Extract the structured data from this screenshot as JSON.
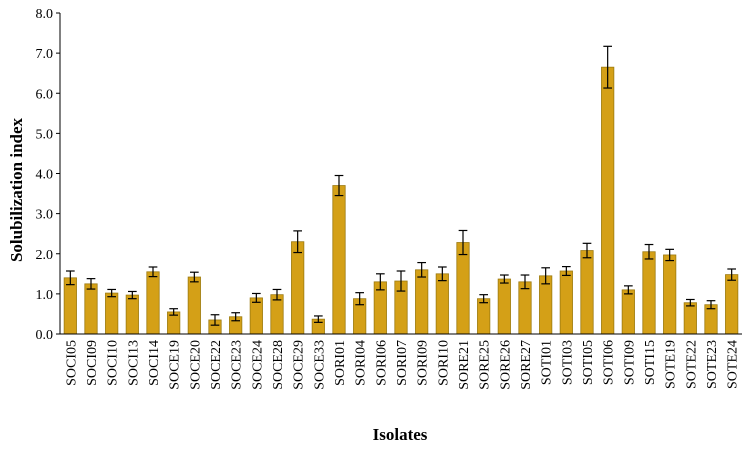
{
  "chart_data": {
    "type": "bar",
    "xlabel": "Isolates",
    "ylabel": "Solubilization index",
    "ylim": [
      0,
      8
    ],
    "yticks": [
      "0.0",
      "1.0",
      "2.0",
      "3.0",
      "4.0",
      "5.0",
      "6.0",
      "7.0",
      "8.0"
    ],
    "grid": false,
    "bar_color": "#D4A017",
    "bar_edge_color": "#9C7A10",
    "error_bar_color": "#000000",
    "categories": [
      "SOCI05",
      "SOCI09",
      "SOCI10",
      "SOCI13",
      "SOCI14",
      "SOCE19",
      "SOCE20",
      "SOCE22",
      "SOCE23",
      "SOCE24",
      "SOCE28",
      "SOCE29",
      "SOCE33",
      "SORI01",
      "SORI04",
      "SORI06",
      "SORI07",
      "SORI09",
      "SORI10",
      "SORE21",
      "SORE25",
      "SORE26",
      "SORE27",
      "SOTI01",
      "SOTI03",
      "SOTI05",
      "SOTI06",
      "SOTI09",
      "SOTI15",
      "SOTE19",
      "SOTE22",
      "SOTE23",
      "SOTE24"
    ],
    "values": [
      1.4,
      1.25,
      1.02,
      0.97,
      1.55,
      0.55,
      1.42,
      0.35,
      0.43,
      0.9,
      0.98,
      2.3,
      0.37,
      3.7,
      0.88,
      1.3,
      1.32,
      1.6,
      1.5,
      2.28,
      0.88,
      1.37,
      1.3,
      1.45,
      1.57,
      2.08,
      6.65,
      1.1,
      2.05,
      1.97,
      0.78,
      0.73,
      1.48
    ],
    "errors": [
      0.17,
      0.13,
      0.09,
      0.09,
      0.12,
      0.08,
      0.12,
      0.13,
      0.1,
      0.11,
      0.13,
      0.27,
      0.08,
      0.25,
      0.15,
      0.2,
      0.25,
      0.18,
      0.17,
      0.3,
      0.1,
      0.1,
      0.17,
      0.2,
      0.11,
      0.18,
      0.52,
      0.1,
      0.18,
      0.14,
      0.08,
      0.1,
      0.14
    ]
  }
}
